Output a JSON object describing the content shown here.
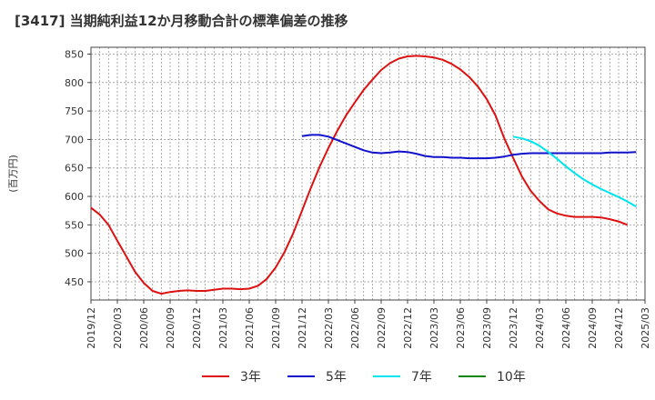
{
  "chart_data": {
    "type": "line",
    "title": "[3417]  当期純利益12か月移動合計の標準偏差の推移",
    "ylabel": "(百万円)",
    "xlabel": "",
    "ylim": [
      418,
      862
    ],
    "yticks": [
      450,
      500,
      550,
      600,
      650,
      700,
      750,
      800,
      850
    ],
    "x_tick_labels": [
      "2019/12",
      "2020/03",
      "2020/06",
      "2020/09",
      "2020/12",
      "2021/03",
      "2021/06",
      "2021/09",
      "2021/12",
      "2022/03",
      "2022/06",
      "2022/09",
      "2022/12",
      "2023/03",
      "2023/06",
      "2023/09",
      "2023/12",
      "2024/03",
      "2024/06",
      "2024/09",
      "2024/12",
      "2025/03"
    ],
    "grid": true,
    "legend_position": "bottom",
    "series": [
      {
        "name": "3年",
        "color": "#dd1111",
        "start_index": 0,
        "values": [
          580,
          568,
          550,
          522,
          495,
          468,
          448,
          434,
          429,
          432,
          434,
          435,
          434,
          434,
          436,
          438,
          438,
          437,
          438,
          443,
          455,
          475,
          502,
          535,
          575,
          615,
          652,
          685,
          715,
          742,
          765,
          787,
          805,
          822,
          834,
          842,
          846,
          847,
          846,
          844,
          840,
          833,
          823,
          810,
          793,
          771,
          742,
          702,
          668,
          635,
          610,
          592,
          577,
          570,
          566,
          564,
          564,
          564,
          563,
          560,
          556,
          550
        ]
      },
      {
        "name": "5年",
        "color": "#1111cc",
        "start_index": 24,
        "values": [
          706,
          708,
          708,
          705,
          699,
          693,
          687,
          681,
          677,
          676,
          677,
          679,
          678,
          675,
          671,
          669,
          669,
          668,
          668,
          667,
          667,
          667,
          668,
          670,
          673,
          675,
          676,
          676,
          676,
          676,
          676,
          676,
          676,
          676,
          676,
          677,
          677,
          677,
          678
        ]
      },
      {
        "name": "7年",
        "color": "#00e5ee",
        "start_index": 48,
        "values": [
          705,
          702,
          697,
          689,
          678,
          666,
          653,
          641,
          630,
          621,
          613,
          606,
          599,
          591,
          582
        ]
      },
      {
        "name": "10年",
        "color": "#118811",
        "start_index": 0,
        "values": []
      }
    ]
  }
}
